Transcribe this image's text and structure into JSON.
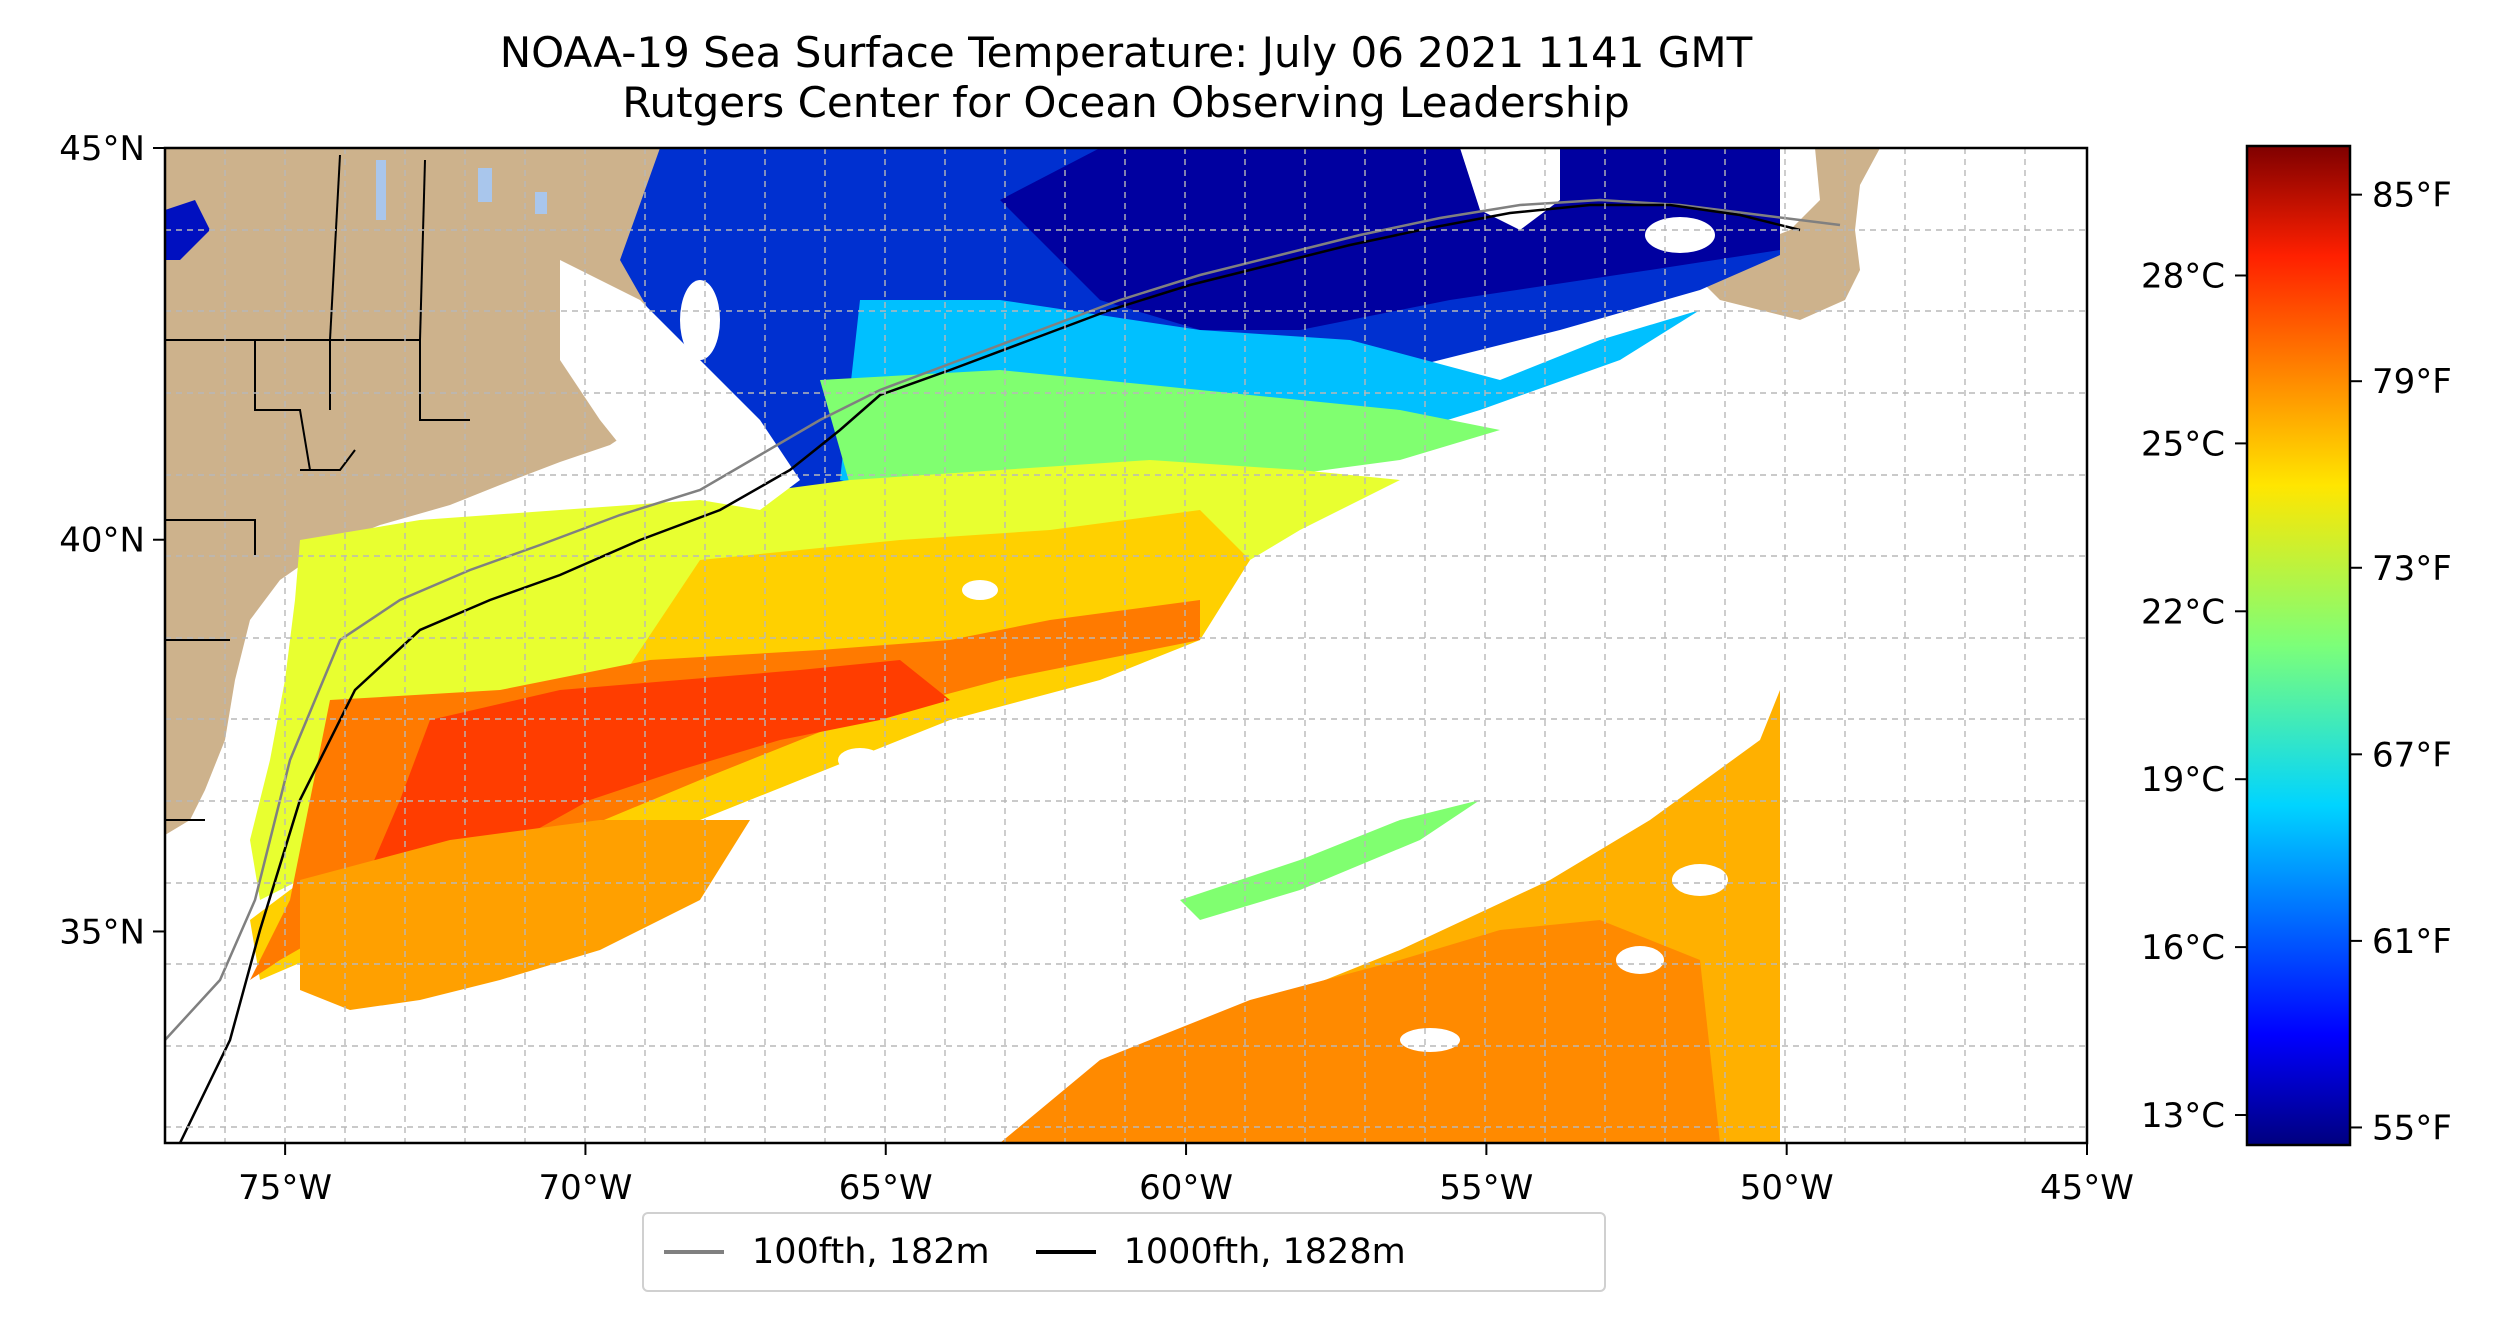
{
  "title": {
    "line1": "NOAA-19 Sea Surface Temperature: July 06 2021 1141 GMT",
    "line2": "Rutgers Center for Ocean Observing Leadership"
  },
  "map": {
    "extent": {
      "lon_min": -77,
      "lon_max": -45,
      "lat_min": 32.3,
      "lat_max": 45
    },
    "lat_labels": [
      "45°N",
      "40°N",
      "35°N"
    ],
    "lat_values": [
      45,
      40,
      35
    ],
    "lon_labels": [
      "75°W",
      "70°W",
      "65°W",
      "60°W",
      "55°W",
      "50°W",
      "45°W"
    ],
    "lon_values": [
      -75,
      -70,
      -65,
      -60,
      -55,
      -50,
      -45
    ],
    "gridlines": true,
    "land_color": "#cdb28c",
    "lake_color": "#a9c6ec"
  },
  "legend": {
    "placement": "bottom-center",
    "entries": [
      {
        "label": "100fth, 182m",
        "color": "#808080"
      },
      {
        "label": "1000fth, 1828m",
        "color": "#000000"
      }
    ]
  },
  "colorbar": {
    "colormap": "jet",
    "celsius_labels": [
      "28°C",
      "25°C",
      "22°C",
      "19°C",
      "16°C",
      "13°C"
    ],
    "celsius_values": [
      28,
      25,
      22,
      19,
      16,
      13
    ],
    "fahrenheit_labels": [
      "85°F",
      "79°F",
      "73°F",
      "67°F",
      "61°F",
      "55°F"
    ],
    "fahrenheit_values": [
      85,
      79,
      73,
      67,
      61,
      55
    ],
    "range_f": [
      54.5,
      86.5
    ]
  }
}
